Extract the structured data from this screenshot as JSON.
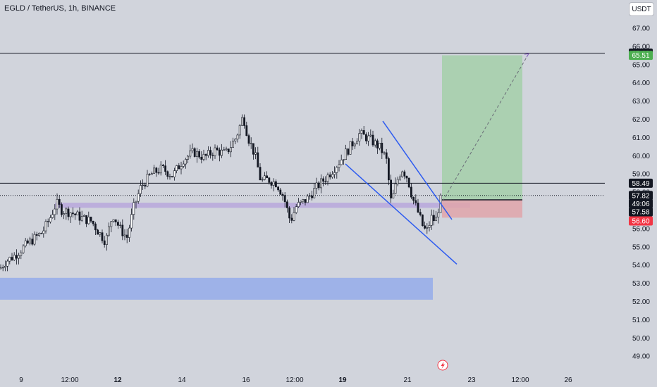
{
  "header": {
    "title": "EGLD / TetherUS, 1h, BINANCE",
    "currency": "USDT"
  },
  "colors": {
    "background": "#d1d4dc",
    "candle": "#131722",
    "support_zone": "#9bb0e8",
    "entry_zone": "#b8a7dc",
    "profit_zone": "#a5cfa9",
    "stop_zone": "#e0a4aa",
    "trend_line": "#2d5bf0",
    "level_line": "#131722",
    "badge_dark": "#131722",
    "badge_green": "#4caf50",
    "badge_red": "#f23645"
  },
  "chart_data": {
    "type": "candlestick",
    "title": "EGLD / TetherUS, 1h, BINANCE",
    "symbol": "EGLD / TetherUS",
    "timeframe": "1h",
    "exchange": "BINANCE",
    "currency": "USDT",
    "ylim": [
      48.5,
      67.6
    ],
    "y_ticks": [
      "67.00",
      "66.00",
      "65.00",
      "64.00",
      "63.00",
      "62.00",
      "61.00",
      "60.00",
      "59.00",
      "58.00",
      "57.00",
      "56.00",
      "55.00",
      "54.00",
      "53.00",
      "52.00",
      "51.00",
      "50.00",
      "49.00"
    ],
    "x_ticks": [
      {
        "label": "9",
        "bold": false
      },
      {
        "label": "12:00",
        "bold": false
      },
      {
        "label": "12",
        "bold": true
      },
      {
        "label": "14",
        "bold": false
      },
      {
        "label": "16",
        "bold": false
      },
      {
        "label": "12:00",
        "bold": false
      },
      {
        "label": "19",
        "bold": true
      },
      {
        "label": "21",
        "bold": false
      },
      {
        "label": "23",
        "bold": false
      },
      {
        "label": "12:00",
        "bold": false
      },
      {
        "label": "26",
        "bold": false
      }
    ],
    "price_path": [
      [
        0,
        53.8
      ],
      [
        8,
        54.2
      ],
      [
        20,
        54.5
      ],
      [
        40,
        55.2
      ],
      [
        60,
        55.8
      ],
      [
        70,
        56.5
      ],
      [
        80,
        57.4
      ],
      [
        88,
        57.0
      ],
      [
        100,
        56.9
      ],
      [
        115,
        56.6
      ],
      [
        130,
        56.4
      ],
      [
        140,
        55.8
      ],
      [
        150,
        55.3
      ],
      [
        160,
        56.8
      ],
      [
        170,
        56.0
      ],
      [
        180,
        55.5
      ],
      [
        190,
        57.2
      ],
      [
        200,
        58.3
      ],
      [
        215,
        59.0
      ],
      [
        230,
        59.3
      ],
      [
        245,
        58.9
      ],
      [
        260,
        59.8
      ],
      [
        275,
        60.2
      ],
      [
        290,
        59.9
      ],
      [
        305,
        60.3
      ],
      [
        320,
        60.1
      ],
      [
        335,
        61.0
      ],
      [
        345,
        62.2
      ],
      [
        352,
        61.0
      ],
      [
        362,
        60.0
      ],
      [
        370,
        58.6
      ],
      [
        380,
        58.7
      ],
      [
        392,
        58.5
      ],
      [
        402,
        57.8
      ],
      [
        412,
        56.4
      ],
      [
        420,
        57.2
      ],
      [
        435,
        57.6
      ],
      [
        450,
        58.3
      ],
      [
        465,
        58.9
      ],
      [
        480,
        59.6
      ],
      [
        495,
        60.4
      ],
      [
        510,
        61.2
      ],
      [
        525,
        60.9
      ],
      [
        540,
        60.4
      ],
      [
        548,
        59.8
      ],
      [
        555,
        57.4
      ],
      [
        563,
        58.6
      ],
      [
        570,
        59.3
      ],
      [
        578,
        58.8
      ],
      [
        585,
        57.7
      ],
      [
        593,
        56.9
      ],
      [
        600,
        56.1
      ],
      [
        605,
        55.8
      ],
      [
        612,
        56.6
      ],
      [
        618,
        56.4
      ],
      [
        624,
        57.5
      ],
      [
        628,
        57.8
      ]
    ],
    "zones": [
      {
        "kind": "support",
        "from_x": 0,
        "to_x": 614,
        "low": 52.1,
        "high": 53.3
      },
      {
        "kind": "entry",
        "from_x": 78,
        "to_x": 667,
        "low": 57.14,
        "high": 57.42
      },
      {
        "kind": "profit",
        "from_x": 627,
        "to_x": 741,
        "low": 57.58,
        "high": 65.51
      },
      {
        "kind": "stop",
        "from_x": 627,
        "to_x": 741,
        "low": 56.6,
        "high": 57.58
      }
    ],
    "horizontal_lines": [
      {
        "price": 65.63,
        "style": "solid"
      },
      {
        "price": 58.49,
        "style": "solid"
      },
      {
        "price": 57.82,
        "style": "dotted"
      }
    ],
    "trend_lines": [
      {
        "from": [
          490,
          59.55
        ],
        "to": [
          648,
          54.05
        ]
      },
      {
        "from": [
          543,
          61.9
        ],
        "to": [
          641,
          56.5
        ]
      }
    ],
    "projection_line": {
      "from": [
        628,
        57.5
      ],
      "to": [
        750,
        65.6
      ]
    },
    "price_labels": [
      {
        "text": "65.63",
        "price": 65.63,
        "style": "dark"
      },
      {
        "text": "65.51",
        "price": 65.51,
        "style": "green"
      },
      {
        "text": "58.49",
        "price": 58.49,
        "style": "dark"
      },
      {
        "text": "57.82",
        "price": 57.82,
        "style": "dark"
      },
      {
        "text": "49:06",
        "price": 57.37,
        "style": "dark"
      },
      {
        "text": "57.58",
        "price": 56.92,
        "style": "dark"
      },
      {
        "text": "56.60",
        "price": 56.42,
        "style": "red"
      }
    ]
  }
}
